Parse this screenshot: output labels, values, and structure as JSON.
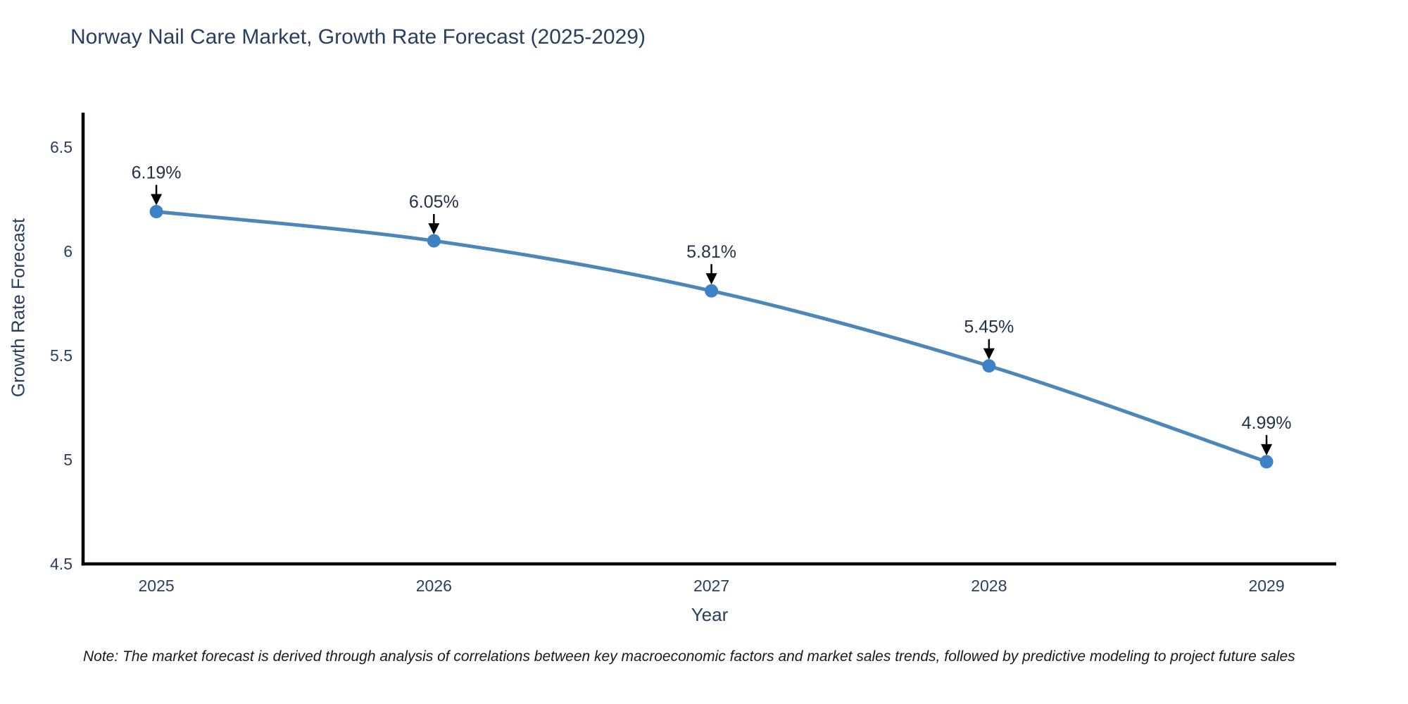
{
  "chart_data": {
    "type": "line",
    "title": "Norway Nail Care Market, Growth Rate Forecast (2025-2029)",
    "xlabel": "Year",
    "ylabel": "Growth Rate Forecast",
    "x": [
      2025,
      2026,
      2027,
      2028,
      2029
    ],
    "series": [
      {
        "name": "Growth Rate Forecast",
        "values": [
          6.19,
          6.05,
          5.81,
          5.45,
          4.99
        ]
      }
    ],
    "point_labels": [
      "6.19%",
      "6.05%",
      "5.81%",
      "5.45%",
      "4.99%"
    ],
    "xtick_labels": [
      "2025",
      "2026",
      "2027",
      "2028",
      "2029"
    ],
    "ytick_values": [
      4.5,
      5,
      5.5,
      6,
      6.5
    ],
    "ytick_labels": [
      "4.5",
      "5",
      "5.5",
      "6",
      "6.5"
    ],
    "ylim": [
      4.5,
      6.5
    ],
    "grid": false,
    "legend": "none",
    "curve": "smooth",
    "annotations_have_arrows": true,
    "colors": {
      "line": "#4d87ba",
      "marker": "#3d82c4",
      "axis": "#000000",
      "label_text": "#2a3f5f",
      "annotation_arrow": "#000000"
    }
  },
  "note": "Note: The market forecast is derived through analysis of correlations between key macroeconomic factors and market sales trends, followed by predictive modeling to project future sales"
}
